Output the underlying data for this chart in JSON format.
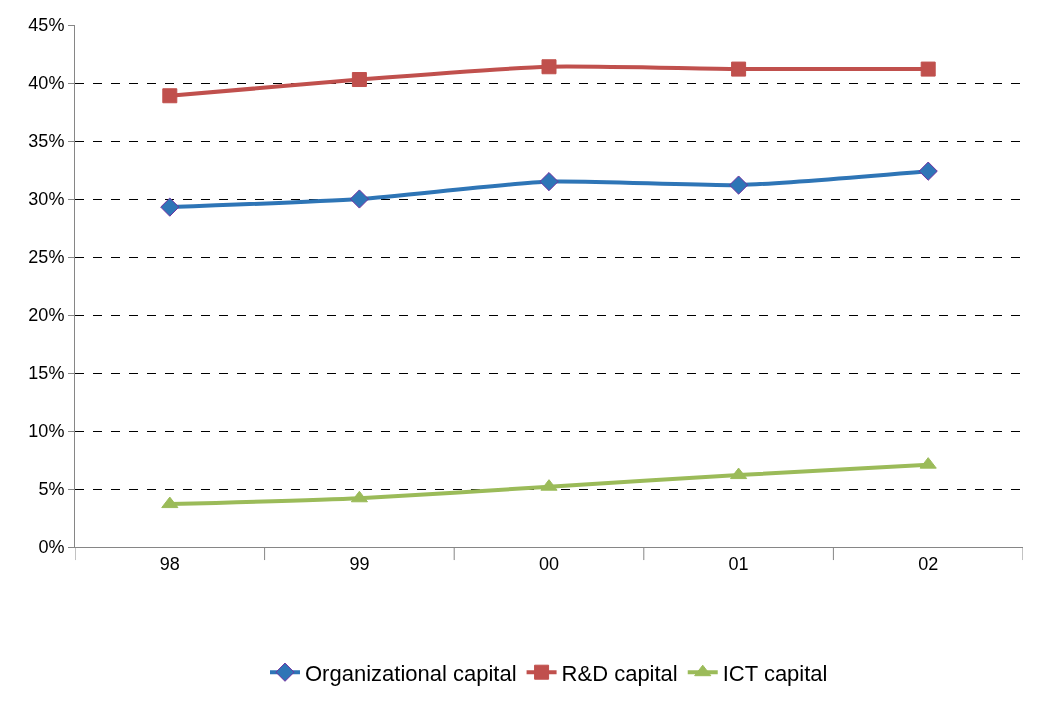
{
  "chart_data": {
    "type": "line",
    "categories": [
      "98",
      "99",
      "00",
      "01",
      "02"
    ],
    "series": [
      {
        "name": "Organizational capital",
        "color": "#2e75b6",
        "marker": "diamond",
        "values": [
          29.3,
          30.0,
          31.5,
          31.2,
          32.4
        ]
      },
      {
        "name": "R&D capital",
        "color": "#c0504d",
        "marker": "square",
        "values": [
          38.9,
          40.3,
          41.4,
          41.2,
          41.2
        ]
      },
      {
        "name": "ICT capital",
        "color": "#9bbb59",
        "marker": "triangle",
        "values": [
          3.7,
          4.2,
          5.2,
          6.2,
          7.1
        ]
      }
    ],
    "ylim": [
      0,
      45
    ],
    "yticks": [
      {
        "value": 0,
        "label": "0%"
      },
      {
        "value": 5,
        "label": "5%"
      },
      {
        "value": 10,
        "label": "10%"
      },
      {
        "value": 15,
        "label": "15%"
      },
      {
        "value": 20,
        "label": "20%"
      },
      {
        "value": 25,
        "label": "25%"
      },
      {
        "value": 30,
        "label": "30%"
      },
      {
        "value": 35,
        "label": "35%"
      },
      {
        "value": 40,
        "label": "40%"
      },
      {
        "value": 45,
        "label": "45%"
      }
    ],
    "grid": "y",
    "legend": "bottom",
    "line_style": "solid"
  }
}
